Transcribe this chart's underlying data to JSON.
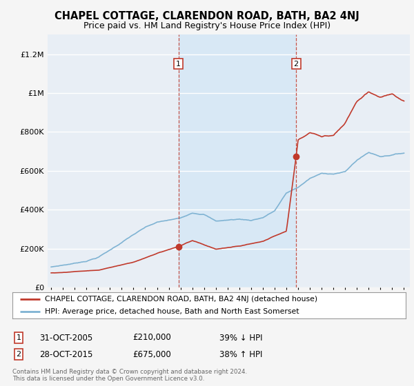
{
  "title": "CHAPEL COTTAGE, CLARENDON ROAD, BATH, BA2 4NJ",
  "subtitle": "Price paid vs. HM Land Registry's House Price Index (HPI)",
  "title_fontsize": 10.5,
  "subtitle_fontsize": 9,
  "background_color": "#f5f5f5",
  "plot_bg_color": "#e8eef5",
  "highlight_bg_color": "#d8e8f5",
  "grid_color": "#ffffff",
  "ylim": [
    0,
    1300000
  ],
  "yticks": [
    0,
    200000,
    400000,
    600000,
    800000,
    1000000,
    1200000
  ],
  "ytick_labels": [
    "£0",
    "£200K",
    "£400K",
    "£600K",
    "£800K",
    "£1M",
    "£1.2M"
  ],
  "sale1_year": 2005.83,
  "sale1_price": 210000,
  "sale1_label": "1",
  "sale1_date": "31-OCT-2005",
  "sale1_amount": "£210,000",
  "sale1_pct": "39% ↓ HPI",
  "sale2_year": 2015.83,
  "sale2_price": 675000,
  "sale2_label": "2",
  "sale2_date": "28-OCT-2015",
  "sale2_amount": "£675,000",
  "sale2_pct": "38% ↑ HPI",
  "line_color_property": "#c0392b",
  "line_color_hpi": "#7fb3d3",
  "marker_color": "#c0392b",
  "dashed_line_color": "#c0392b",
  "legend_label_property": "CHAPEL COTTAGE, CLARENDON ROAD, BATH, BA2 4NJ (detached house)",
  "legend_label_hpi": "HPI: Average price, detached house, Bath and North East Somerset",
  "footer1": "Contains HM Land Registry data © Crown copyright and database right 2024.",
  "footer2": "This data is licensed under the Open Government Licence v3.0.",
  "hpi_key_years": [
    1995,
    1996,
    1997,
    1998,
    1999,
    2000,
    2001,
    2002,
    2003,
    2004,
    2005,
    2006,
    2007,
    2008,
    2009,
    2010,
    2011,
    2012,
    2013,
    2014,
    2015,
    2016,
    2017,
    2018,
    2019,
    2020,
    2021,
    2022,
    2023,
    2024,
    2025
  ],
  "hpi_key_vals": [
    105000,
    115000,
    125000,
    138000,
    158000,
    195000,
    235000,
    275000,
    310000,
    335000,
    345000,
    355000,
    385000,
    380000,
    345000,
    350000,
    355000,
    350000,
    365000,
    400000,
    490000,
    520000,
    565000,
    590000,
    590000,
    600000,
    660000,
    700000,
    680000,
    690000,
    700000
  ],
  "prop_key_years_s1": [
    1995,
    1999,
    2002,
    2004,
    2005.83
  ],
  "prop_key_vals_s1": [
    75000,
    90000,
    130000,
    175000,
    210000
  ],
  "prop_key_years_s2": [
    2005.83,
    2007,
    2009,
    2011,
    2013,
    2015.0,
    2015.83
  ],
  "prop_key_vals_s2": [
    210000,
    240000,
    195000,
    210000,
    235000,
    290000,
    675000
  ],
  "prop_key_years_s3": [
    2015.83,
    2016,
    2017,
    2018,
    2019,
    2020,
    2021,
    2022,
    2023,
    2024,
    2025
  ],
  "prop_key_vals_s3": [
    675000,
    760000,
    800000,
    780000,
    790000,
    850000,
    960000,
    1010000,
    980000,
    1000000,
    960000
  ]
}
